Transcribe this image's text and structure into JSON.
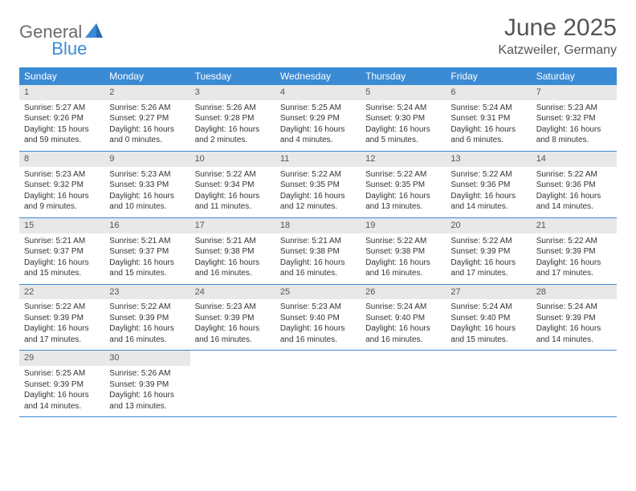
{
  "logo": {
    "text1": "General",
    "text2": "Blue"
  },
  "header": {
    "month": "June 2025",
    "location": "Katzweiler, Germany"
  },
  "colors": {
    "accent": "#3b8bd4",
    "header_gray": "#e8e8e8",
    "text": "#333333",
    "title_text": "#555555",
    "logo_gray": "#6b6b6b",
    "background": "#ffffff"
  },
  "day_names": [
    "Sunday",
    "Monday",
    "Tuesday",
    "Wednesday",
    "Thursday",
    "Friday",
    "Saturday"
  ],
  "days": [
    {
      "n": "1",
      "sr": "5:27 AM",
      "ss": "9:26 PM",
      "dl": "15 hours and 59 minutes."
    },
    {
      "n": "2",
      "sr": "5:26 AM",
      "ss": "9:27 PM",
      "dl": "16 hours and 0 minutes."
    },
    {
      "n": "3",
      "sr": "5:26 AM",
      "ss": "9:28 PM",
      "dl": "16 hours and 2 minutes."
    },
    {
      "n": "4",
      "sr": "5:25 AM",
      "ss": "9:29 PM",
      "dl": "16 hours and 4 minutes."
    },
    {
      "n": "5",
      "sr": "5:24 AM",
      "ss": "9:30 PM",
      "dl": "16 hours and 5 minutes."
    },
    {
      "n": "6",
      "sr": "5:24 AM",
      "ss": "9:31 PM",
      "dl": "16 hours and 6 minutes."
    },
    {
      "n": "7",
      "sr": "5:23 AM",
      "ss": "9:32 PM",
      "dl": "16 hours and 8 minutes."
    },
    {
      "n": "8",
      "sr": "5:23 AM",
      "ss": "9:32 PM",
      "dl": "16 hours and 9 minutes."
    },
    {
      "n": "9",
      "sr": "5:23 AM",
      "ss": "9:33 PM",
      "dl": "16 hours and 10 minutes."
    },
    {
      "n": "10",
      "sr": "5:22 AM",
      "ss": "9:34 PM",
      "dl": "16 hours and 11 minutes."
    },
    {
      "n": "11",
      "sr": "5:22 AM",
      "ss": "9:35 PM",
      "dl": "16 hours and 12 minutes."
    },
    {
      "n": "12",
      "sr": "5:22 AM",
      "ss": "9:35 PM",
      "dl": "16 hours and 13 minutes."
    },
    {
      "n": "13",
      "sr": "5:22 AM",
      "ss": "9:36 PM",
      "dl": "16 hours and 14 minutes."
    },
    {
      "n": "14",
      "sr": "5:22 AM",
      "ss": "9:36 PM",
      "dl": "16 hours and 14 minutes."
    },
    {
      "n": "15",
      "sr": "5:21 AM",
      "ss": "9:37 PM",
      "dl": "16 hours and 15 minutes."
    },
    {
      "n": "16",
      "sr": "5:21 AM",
      "ss": "9:37 PM",
      "dl": "16 hours and 15 minutes."
    },
    {
      "n": "17",
      "sr": "5:21 AM",
      "ss": "9:38 PM",
      "dl": "16 hours and 16 minutes."
    },
    {
      "n": "18",
      "sr": "5:21 AM",
      "ss": "9:38 PM",
      "dl": "16 hours and 16 minutes."
    },
    {
      "n": "19",
      "sr": "5:22 AM",
      "ss": "9:38 PM",
      "dl": "16 hours and 16 minutes."
    },
    {
      "n": "20",
      "sr": "5:22 AM",
      "ss": "9:39 PM",
      "dl": "16 hours and 17 minutes."
    },
    {
      "n": "21",
      "sr": "5:22 AM",
      "ss": "9:39 PM",
      "dl": "16 hours and 17 minutes."
    },
    {
      "n": "22",
      "sr": "5:22 AM",
      "ss": "9:39 PM",
      "dl": "16 hours and 17 minutes."
    },
    {
      "n": "23",
      "sr": "5:22 AM",
      "ss": "9:39 PM",
      "dl": "16 hours and 16 minutes."
    },
    {
      "n": "24",
      "sr": "5:23 AM",
      "ss": "9:39 PM",
      "dl": "16 hours and 16 minutes."
    },
    {
      "n": "25",
      "sr": "5:23 AM",
      "ss": "9:40 PM",
      "dl": "16 hours and 16 minutes."
    },
    {
      "n": "26",
      "sr": "5:24 AM",
      "ss": "9:40 PM",
      "dl": "16 hours and 16 minutes."
    },
    {
      "n": "27",
      "sr": "5:24 AM",
      "ss": "9:40 PM",
      "dl": "16 hours and 15 minutes."
    },
    {
      "n": "28",
      "sr": "5:24 AM",
      "ss": "9:39 PM",
      "dl": "16 hours and 14 minutes."
    },
    {
      "n": "29",
      "sr": "5:25 AM",
      "ss": "9:39 PM",
      "dl": "16 hours and 14 minutes."
    },
    {
      "n": "30",
      "sr": "5:26 AM",
      "ss": "9:39 PM",
      "dl": "16 hours and 13 minutes."
    }
  ],
  "labels": {
    "sunrise": "Sunrise: ",
    "sunset": "Sunset: ",
    "daylight": "Daylight: "
  }
}
